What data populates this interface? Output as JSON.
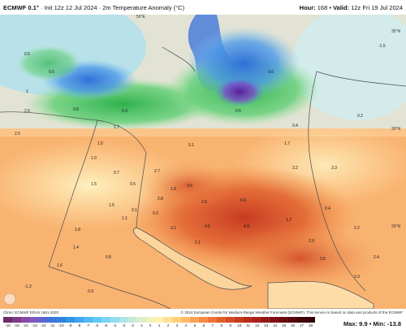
{
  "header": {
    "model": "ECMWF 0.1°",
    "init": "Init 12z 12 Jul 2024",
    "variable": "2m Temperature Anomaly (°C)",
    "hour_label": "Hour:",
    "hour": "168",
    "valid_label": "Valid:",
    "valid": "12z Fri 19 Jul 2024"
  },
  "footer": {
    "left_credit": "Climo: ECMWF ERA5 1991-2020",
    "right_credit": "© 2024 European Centre for Medium-Range Weather Forecasts (ECMWF). This service is based on data and products of the ECMWF",
    "max_min": "Max: 9.9 • Min: -13.8"
  },
  "colorbar": {
    "ticks": [
      "-16",
      "-15",
      "-14",
      "-13",
      "-12",
      "-11",
      "-10",
      "-9",
      "-8",
      "-7",
      "-6",
      "-5",
      "-4",
      "-3",
      "-2",
      "-1",
      "0",
      "1",
      "2",
      "3",
      "4",
      "5",
      "6",
      "7",
      "8",
      "9",
      "10",
      "11",
      "12",
      "13",
      "14",
      "15",
      "16",
      "17",
      "18"
    ],
    "colors": [
      "#6b2a6b",
      "#7d3a87",
      "#8a4aa6",
      "#7a5cc0",
      "#5a66d0",
      "#3f74d8",
      "#2d82e0",
      "#2f95e8",
      "#3aa8ee",
      "#4dbaf2",
      "#62c8f4",
      "#7ad4f4",
      "#93dcef",
      "#aee3e6",
      "#c7e9da",
      "#dcefc9",
      "#ecf3bb",
      "#fff2ae",
      "#ffe195",
      "#ffcf7e",
      "#ffba68",
      "#fda355",
      "#f78c45",
      "#ee7438",
      "#e35e2d",
      "#d64a25",
      "#c8391f",
      "#b82c1c",
      "#a6211a",
      "#931817",
      "#7e1013",
      "#6a0a10",
      "#55050c",
      "#420209",
      "#320107"
    ]
  },
  "places": {
    "lat_35": "35°N",
    "lat_30": "30°N",
    "lat_25": "25°N",
    "lon_50": "50°E"
  },
  "values": {
    "v1": "0.5",
    "v2": "0.6",
    "v3": "1",
    "v4": "0.8",
    "v5": "2.6",
    "v6": "1.7",
    "v7": "2.5",
    "v8": "0.3",
    "v9": "1.5",
    "v10": "1.0",
    "v11": "1.7",
    "v12": "0.7",
    "v13": "0.5",
    "v14": "2.7",
    "v15": "3.2",
    "v16": "3.3",
    "v17": "0.4",
    "v18": "0.1",
    "v19": "0.5",
    "v20": "1.5",
    "v21": "1.9",
    "v22": "2.8",
    "v23": "1.5",
    "v24": "3.6",
    "v25": "2.5",
    "v26": "6.6",
    "v27": "4.5",
    "v28": "4.9",
    "v29": "2.1",
    "v30": "0.1",
    "v31": "1.1",
    "v32": "0.2",
    "v33": "3.1",
    "v34": "2.4",
    "v35": "1.8",
    "v36": "1.4",
    "v37": "1.6",
    "v38": "0.8",
    "v39": "0.4",
    "v40": "2.9",
    "v41": "3.5",
    "v42": "3.3",
    "v43": "2.2",
    "v44": "-1.5",
    "v45": "0.2",
    "v46": "0.9",
    "v47": "-1.3",
    "v48": "0.6",
    "v49": "1.2"
  },
  "colors": {
    "sea_caspian": "#4a7cd8",
    "cold_green": "#3cc258",
    "cold_blue": "#3a78e0",
    "cold_purple": "#7a3cb8",
    "warm_light": "#ffe9a8",
    "warm_orange": "#f7a35a",
    "warm_red": "#d8482a",
    "borders": "#4a4a4a"
  }
}
